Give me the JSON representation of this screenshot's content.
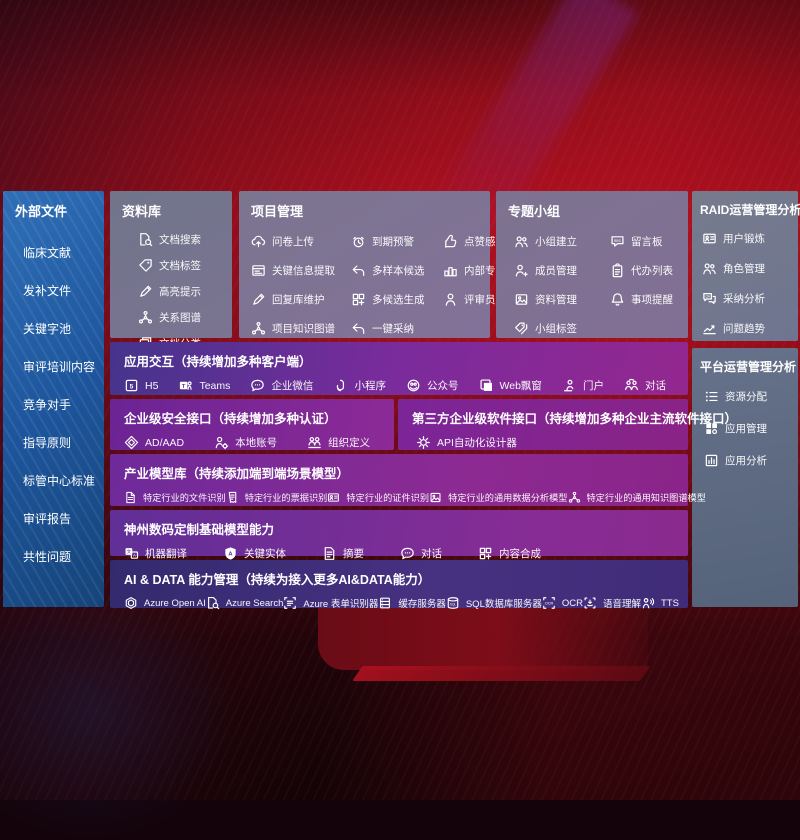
{
  "colors": {
    "background_red": "#a60f1e",
    "sidebar_blue": "#1f5fa6",
    "panel_gray": "#777b8e",
    "purple": "#8a2b94",
    "indigo": "#3a2e79",
    "text": "#ffffff"
  },
  "sidebar": {
    "title": "外部文件",
    "items": [
      "临床文献",
      "发补文件",
      "关键字池",
      "审评培训内容",
      "竞争对手",
      "指导原则",
      "标管中心标准",
      "审评报告",
      "共性问题"
    ]
  },
  "panels": {
    "datalib": {
      "title": "资料库",
      "items": [
        {
          "icon": "doc-search",
          "label": "文档搜索"
        },
        {
          "icon": "tag",
          "label": "文档标签"
        },
        {
          "icon": "pen",
          "label": "高亮提示"
        },
        {
          "icon": "graph",
          "label": "关系图谱"
        },
        {
          "icon": "copy",
          "label": "文档分类"
        }
      ]
    },
    "project": {
      "title": "项目管理",
      "items": [
        {
          "icon": "cloud-up",
          "label": "问卷上传"
        },
        {
          "icon": "alarm",
          "label": "到期预警"
        },
        {
          "icon": "thumb",
          "label": "点赞感谢"
        },
        {
          "icon": "window",
          "label": "关键信息提取"
        },
        {
          "icon": "reply",
          "label": "多样本候选"
        },
        {
          "icon": "podium",
          "label": "内部专家排名"
        },
        {
          "icon": "pen",
          "label": "回复库维护"
        },
        {
          "icon": "grid",
          "label": "多候选生成"
        },
        {
          "icon": "person",
          "label": "评审员画像"
        },
        {
          "icon": "graph",
          "label": "项目知识图谱"
        },
        {
          "icon": "reply",
          "label": "一键采纳"
        }
      ]
    },
    "group": {
      "title": "专题小组",
      "items": [
        {
          "icon": "people",
          "label": "小组建立"
        },
        {
          "icon": "bbs",
          "label": "留言板"
        },
        {
          "icon": "person-add",
          "label": "成员管理"
        },
        {
          "icon": "clipboard",
          "label": "代办列表"
        },
        {
          "icon": "image",
          "label": "资料管理"
        },
        {
          "icon": "bell",
          "label": "事项提醒"
        },
        {
          "icon": "tags",
          "label": "小组标签"
        }
      ]
    },
    "raid": {
      "title": "RAID运营管理分析",
      "items": [
        {
          "icon": "id-card",
          "label": "用户锻炼"
        },
        {
          "icon": "people",
          "label": "角色管理"
        },
        {
          "icon": "qa-chat",
          "label": "采纳分析"
        },
        {
          "icon": "trend",
          "label": "问题趋势"
        }
      ]
    },
    "platform": {
      "title": "平台运营管理分析",
      "items": [
        {
          "icon": "list",
          "label": "资源分配"
        },
        {
          "icon": "blocks",
          "label": "应用管理"
        },
        {
          "icon": "chart",
          "label": "应用分析"
        }
      ]
    }
  },
  "rows": {
    "interact": {
      "title": "应用交互（持续增加多种客户端）",
      "items": [
        {
          "icon": "h5",
          "label": "H5"
        },
        {
          "icon": "teams",
          "label": "Teams"
        },
        {
          "icon": "chat-dots",
          "label": "企业微信"
        },
        {
          "icon": "miniprog",
          "label": "小程序"
        },
        {
          "icon": "official",
          "label": "公众号"
        },
        {
          "icon": "webwin",
          "label": "Web飘窗"
        },
        {
          "icon": "portal",
          "label": "门户"
        },
        {
          "icon": "dialog",
          "label": "对话"
        }
      ]
    },
    "security": {
      "title": "企业级安全接口（持续增加多种认证）",
      "items": [
        {
          "icon": "diamond",
          "label": "AD/AAD"
        },
        {
          "icon": "person-gear",
          "label": "本地账号"
        },
        {
          "icon": "org",
          "label": "组织定义"
        }
      ]
    },
    "thirdparty": {
      "title": "第三方企业级软件接口（持续增加多种企业主流软件接口）",
      "items": [
        {
          "icon": "api-gear",
          "label": "API自动化设计器"
        }
      ]
    },
    "models": {
      "title": "产业模型库（持续添加端到端场景模型）",
      "items": [
        {
          "icon": "doc",
          "label": "特定行业的文件识别"
        },
        {
          "icon": "receipt",
          "label": "特定行业的票据识别"
        },
        {
          "icon": "id-card",
          "label": "特定行业的证件识别"
        },
        {
          "icon": "image",
          "label": "特定行业的通用数据分析模型"
        },
        {
          "icon": "graph",
          "label": "特定行业的通用知识图谱模型"
        }
      ]
    },
    "base": {
      "title": "神州数码定制基础模型能力",
      "items": [
        {
          "icon": "translate",
          "label": "机器翻译"
        },
        {
          "icon": "shield-a",
          "label": "关键实体"
        },
        {
          "icon": "summary",
          "label": "摘要"
        },
        {
          "icon": "chat-dots",
          "label": "对话"
        },
        {
          "icon": "grid",
          "label": "内容合成"
        }
      ]
    },
    "aidata": {
      "title": "AI & DATA 能力管理（持续为接入更多AI&DATA能力）",
      "items": [
        {
          "icon": "openai",
          "label": "Azure Open AI"
        },
        {
          "icon": "doc-search",
          "label": "Azure Search"
        },
        {
          "icon": "form-rec",
          "label": "Azure 表单识别器"
        },
        {
          "icon": "server",
          "label": "缓存服务器"
        },
        {
          "icon": "sql",
          "label": "SQL数据库服务器"
        },
        {
          "icon": "ocr",
          "label": "OCR"
        },
        {
          "icon": "speech",
          "label": "语音理解"
        },
        {
          "icon": "tts",
          "label": "TTS"
        }
      ]
    }
  }
}
